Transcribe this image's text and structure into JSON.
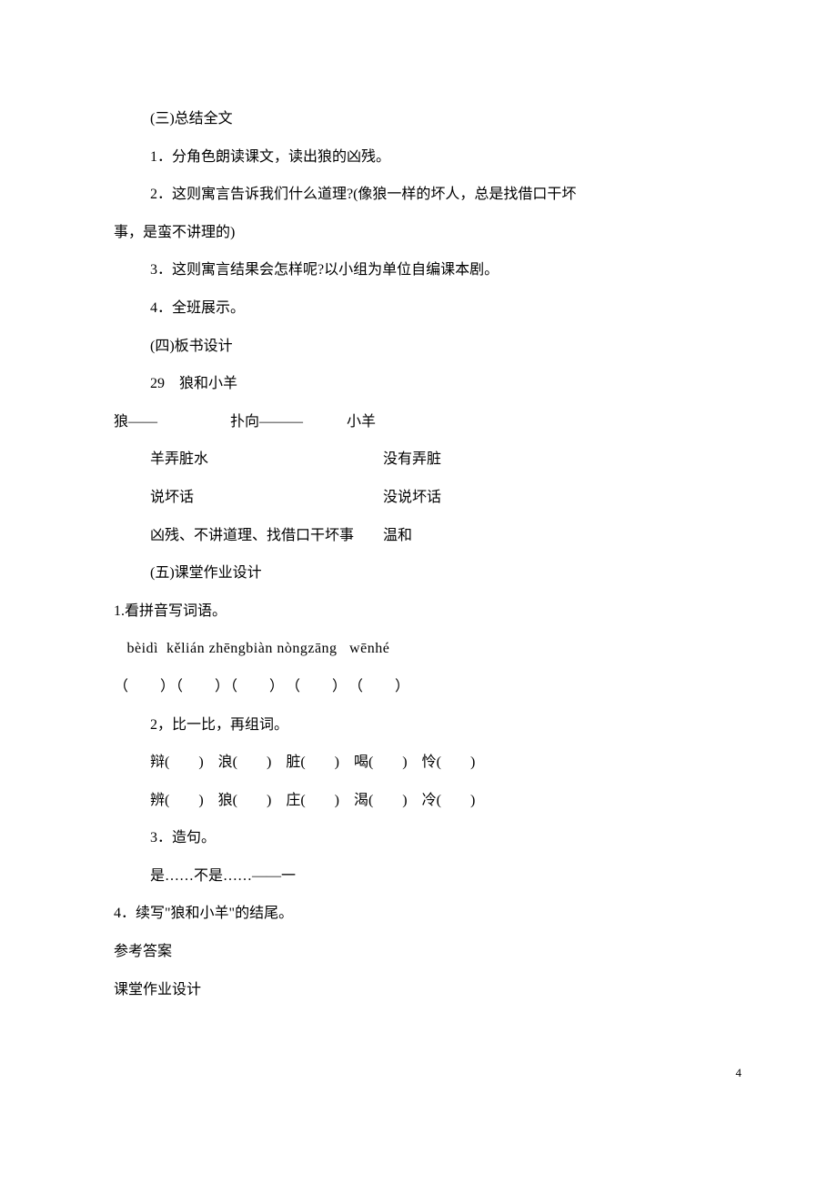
{
  "text_color": "#000000",
  "background_color": "#ffffff",
  "base_font_size": 16,
  "line_height": 2.6,
  "section3": {
    "title": "(三)总结全文",
    "item1": "1．分角色朗读课文，读出狼的凶残。",
    "item2_line1": "2．这则寓言告诉我们什么道理?(像狼一样的坏人，总是找借口干坏",
    "item2_line2": "事，是蛮不讲理的)",
    "item3": "3．这则寓言结果会怎样呢?以小组为单位自编课本剧。",
    "item4": "4．全班展示。"
  },
  "section4": {
    "title": "(四)板书设计",
    "subtitle": "29　狼和小羊",
    "row1": "狼——　　　　　扑向———　　　小羊",
    "row2": "羊弄脏水　　　　　　　　　　　　没有弄脏",
    "row3": "说坏话　　　　　　　　　　　　　没说坏话",
    "row4": "凶残、不讲道理、找借口干坏事　　温和"
  },
  "section5": {
    "title": "(五)课堂作业设计",
    "q1_title": "1.看拼音写词语。",
    "q1_pinyin": " bèidì  kělián zhēngbiàn nòngzāng   wēnhé",
    "q1_parens": "（　　）（　　）（　　）　（　　）　（　　）",
    "q2_title": "2，比一比，再组词。",
    "q2_row1": "辩(　　)　浪(　　)　脏(　　)　喝(　　)　怜(　　)",
    "q2_row2": "辨(　　)　狼(　　)　庄(　　)　渴(　　)　冷(　　)",
    "q3_title": "3．造句。",
    "q3_body": "是……不是……——一",
    "q4_title": "4．续写\"狼和小羊\"的结尾。",
    "ref_answer": "参考答案",
    "hw_design": "课堂作业设计"
  },
  "page_number": "4"
}
